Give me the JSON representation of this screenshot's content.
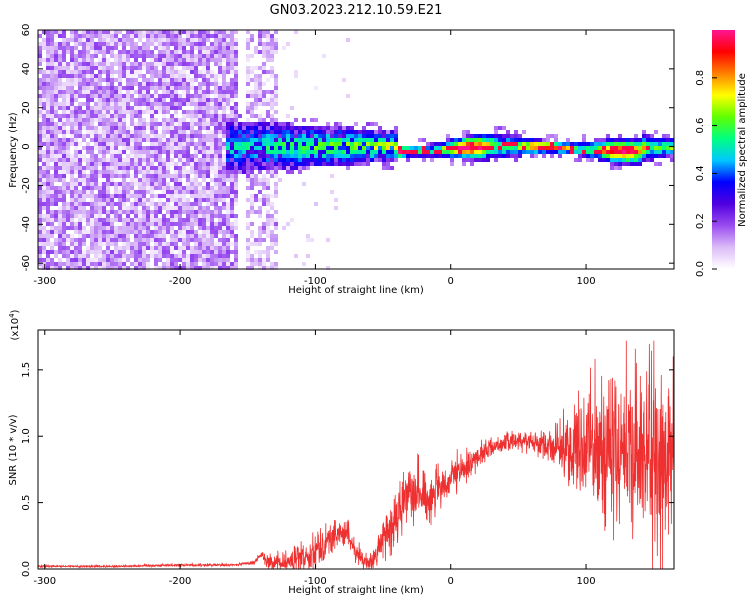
{
  "figure_title": "GN03.2023.212.10.59.E21",
  "chart_data": [
    {
      "type": "heatmap",
      "title": "GN03.2023.212.10.59.E21",
      "xlabel": "Height of straight line (km)",
      "ylabel": "Frequency (Hz)",
      "xlim": [
        -305,
        165
      ],
      "ylim": [
        -63,
        60
      ],
      "x_ticks": [
        -300,
        -200,
        -100,
        0,
        100
      ],
      "x_tick_labels": [
        "-300",
        "-200",
        "-100",
        "0",
        "100"
      ],
      "y_ticks": [
        -60,
        -40,
        -20,
        0,
        20,
        40,
        60
      ],
      "y_tick_labels": [
        "-60",
        "-40",
        "-20",
        "0",
        "20",
        "40",
        "60"
      ],
      "colorbar": {
        "label": "Normalized spectral amplitude",
        "range": [
          0,
          1
        ],
        "ticks": [
          0.0,
          0.2,
          0.4,
          0.6,
          0.8
        ],
        "tick_labels": [
          "0.0",
          "0.2",
          "0.4",
          "0.6",
          "0.8"
        ],
        "colormap": [
          "#ffffff",
          "#dcbcf8",
          "#9a4cf0",
          "#5000e0",
          "#0000ff",
          "#00c8ff",
          "#00ff80",
          "#60ff00",
          "#ffff00",
          "#ff8000",
          "#ff0000",
          "#ff1493"
        ]
      },
      "structure": {
        "broadband_noise_x_range": [
          -305,
          -158
        ],
        "noise_column_x_range": [
          -150,
          -128
        ],
        "signal_band_start_x": -165,
        "signal_center_hz": 0,
        "peak_amplitude_x_range": [
          -40,
          150
        ],
        "peak_amplitude": 0.95
      },
      "grid": false
    },
    {
      "type": "line",
      "xlabel": "Height of straight line (km)",
      "ylabel": "SNR (10 * v/v)",
      "y_multiplier_label": "(x10",
      "y_multiplier_exponent": "4",
      "y_multiplier_suffix": ")",
      "xlim": [
        -305,
        165
      ],
      "ylim": [
        0,
        1.8
      ],
      "x_ticks": [
        -300,
        -200,
        -100,
        0,
        100
      ],
      "x_tick_labels": [
        "-300",
        "-200",
        "-100",
        "0",
        "100"
      ],
      "y_ticks": [
        0.0,
        0.5,
        1.0,
        1.5
      ],
      "y_tick_labels": [
        "0.0",
        "0.5",
        "1.0",
        "1.5"
      ],
      "series": [
        {
          "color": "#ee3030",
          "envelope_x": [
            -305,
            -250,
            -200,
            -160,
            -145,
            -140,
            -135,
            -125,
            -110,
            -100,
            -90,
            -80,
            -75,
            -70,
            -65,
            -60,
            -55,
            -50,
            -45,
            -40,
            -35,
            -30,
            -25,
            -20,
            -15,
            -10,
            -5,
            0,
            10,
            20,
            30,
            40,
            50,
            60,
            70,
            80,
            90,
            100,
            110,
            120,
            130,
            140,
            150,
            160,
            165
          ],
          "envelope_y": [
            0.02,
            0.02,
            0.03,
            0.03,
            0.05,
            0.12,
            0.05,
            0.04,
            0.08,
            0.15,
            0.22,
            0.28,
            0.25,
            0.12,
            0.06,
            0.05,
            0.1,
            0.25,
            0.3,
            0.35,
            0.5,
            0.65,
            0.6,
            0.52,
            0.55,
            0.6,
            0.58,
            0.68,
            0.75,
            0.85,
            0.92,
            0.95,
            0.97,
            0.97,
            0.93,
            0.92,
            0.9,
            0.92,
            0.9,
            0.92,
            0.88,
            0.85,
            0.82,
            0.8,
            0.78
          ],
          "noise_amplitude_x": [
            -305,
            -150,
            -100,
            -60,
            -30,
            0,
            30,
            60,
            80,
            100,
            130,
            165
          ],
          "noise_amplitude_y": [
            0.005,
            0.008,
            0.1,
            0.05,
            0.18,
            0.1,
            0.05,
            0.05,
            0.12,
            0.35,
            0.45,
            0.5
          ],
          "peak_y": 1.72
        }
      ],
      "grid": false
    }
  ]
}
